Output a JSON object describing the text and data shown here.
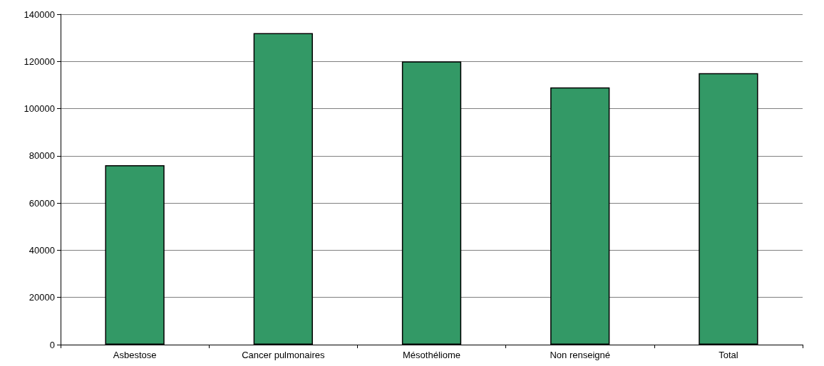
{
  "chart_data": {
    "type": "bar",
    "categories": [
      "Asbestose",
      "Cancer pulmonaires",
      "Mésothéliome",
      "Non renseigné",
      "Total"
    ],
    "values": [
      76000,
      132000,
      120000,
      109000,
      115000
    ],
    "color": "#339966",
    "ylim": [
      0,
      140000
    ],
    "yticks": [
      0,
      20000,
      40000,
      60000,
      80000,
      100000,
      120000,
      140000
    ],
    "grid": "y"
  }
}
